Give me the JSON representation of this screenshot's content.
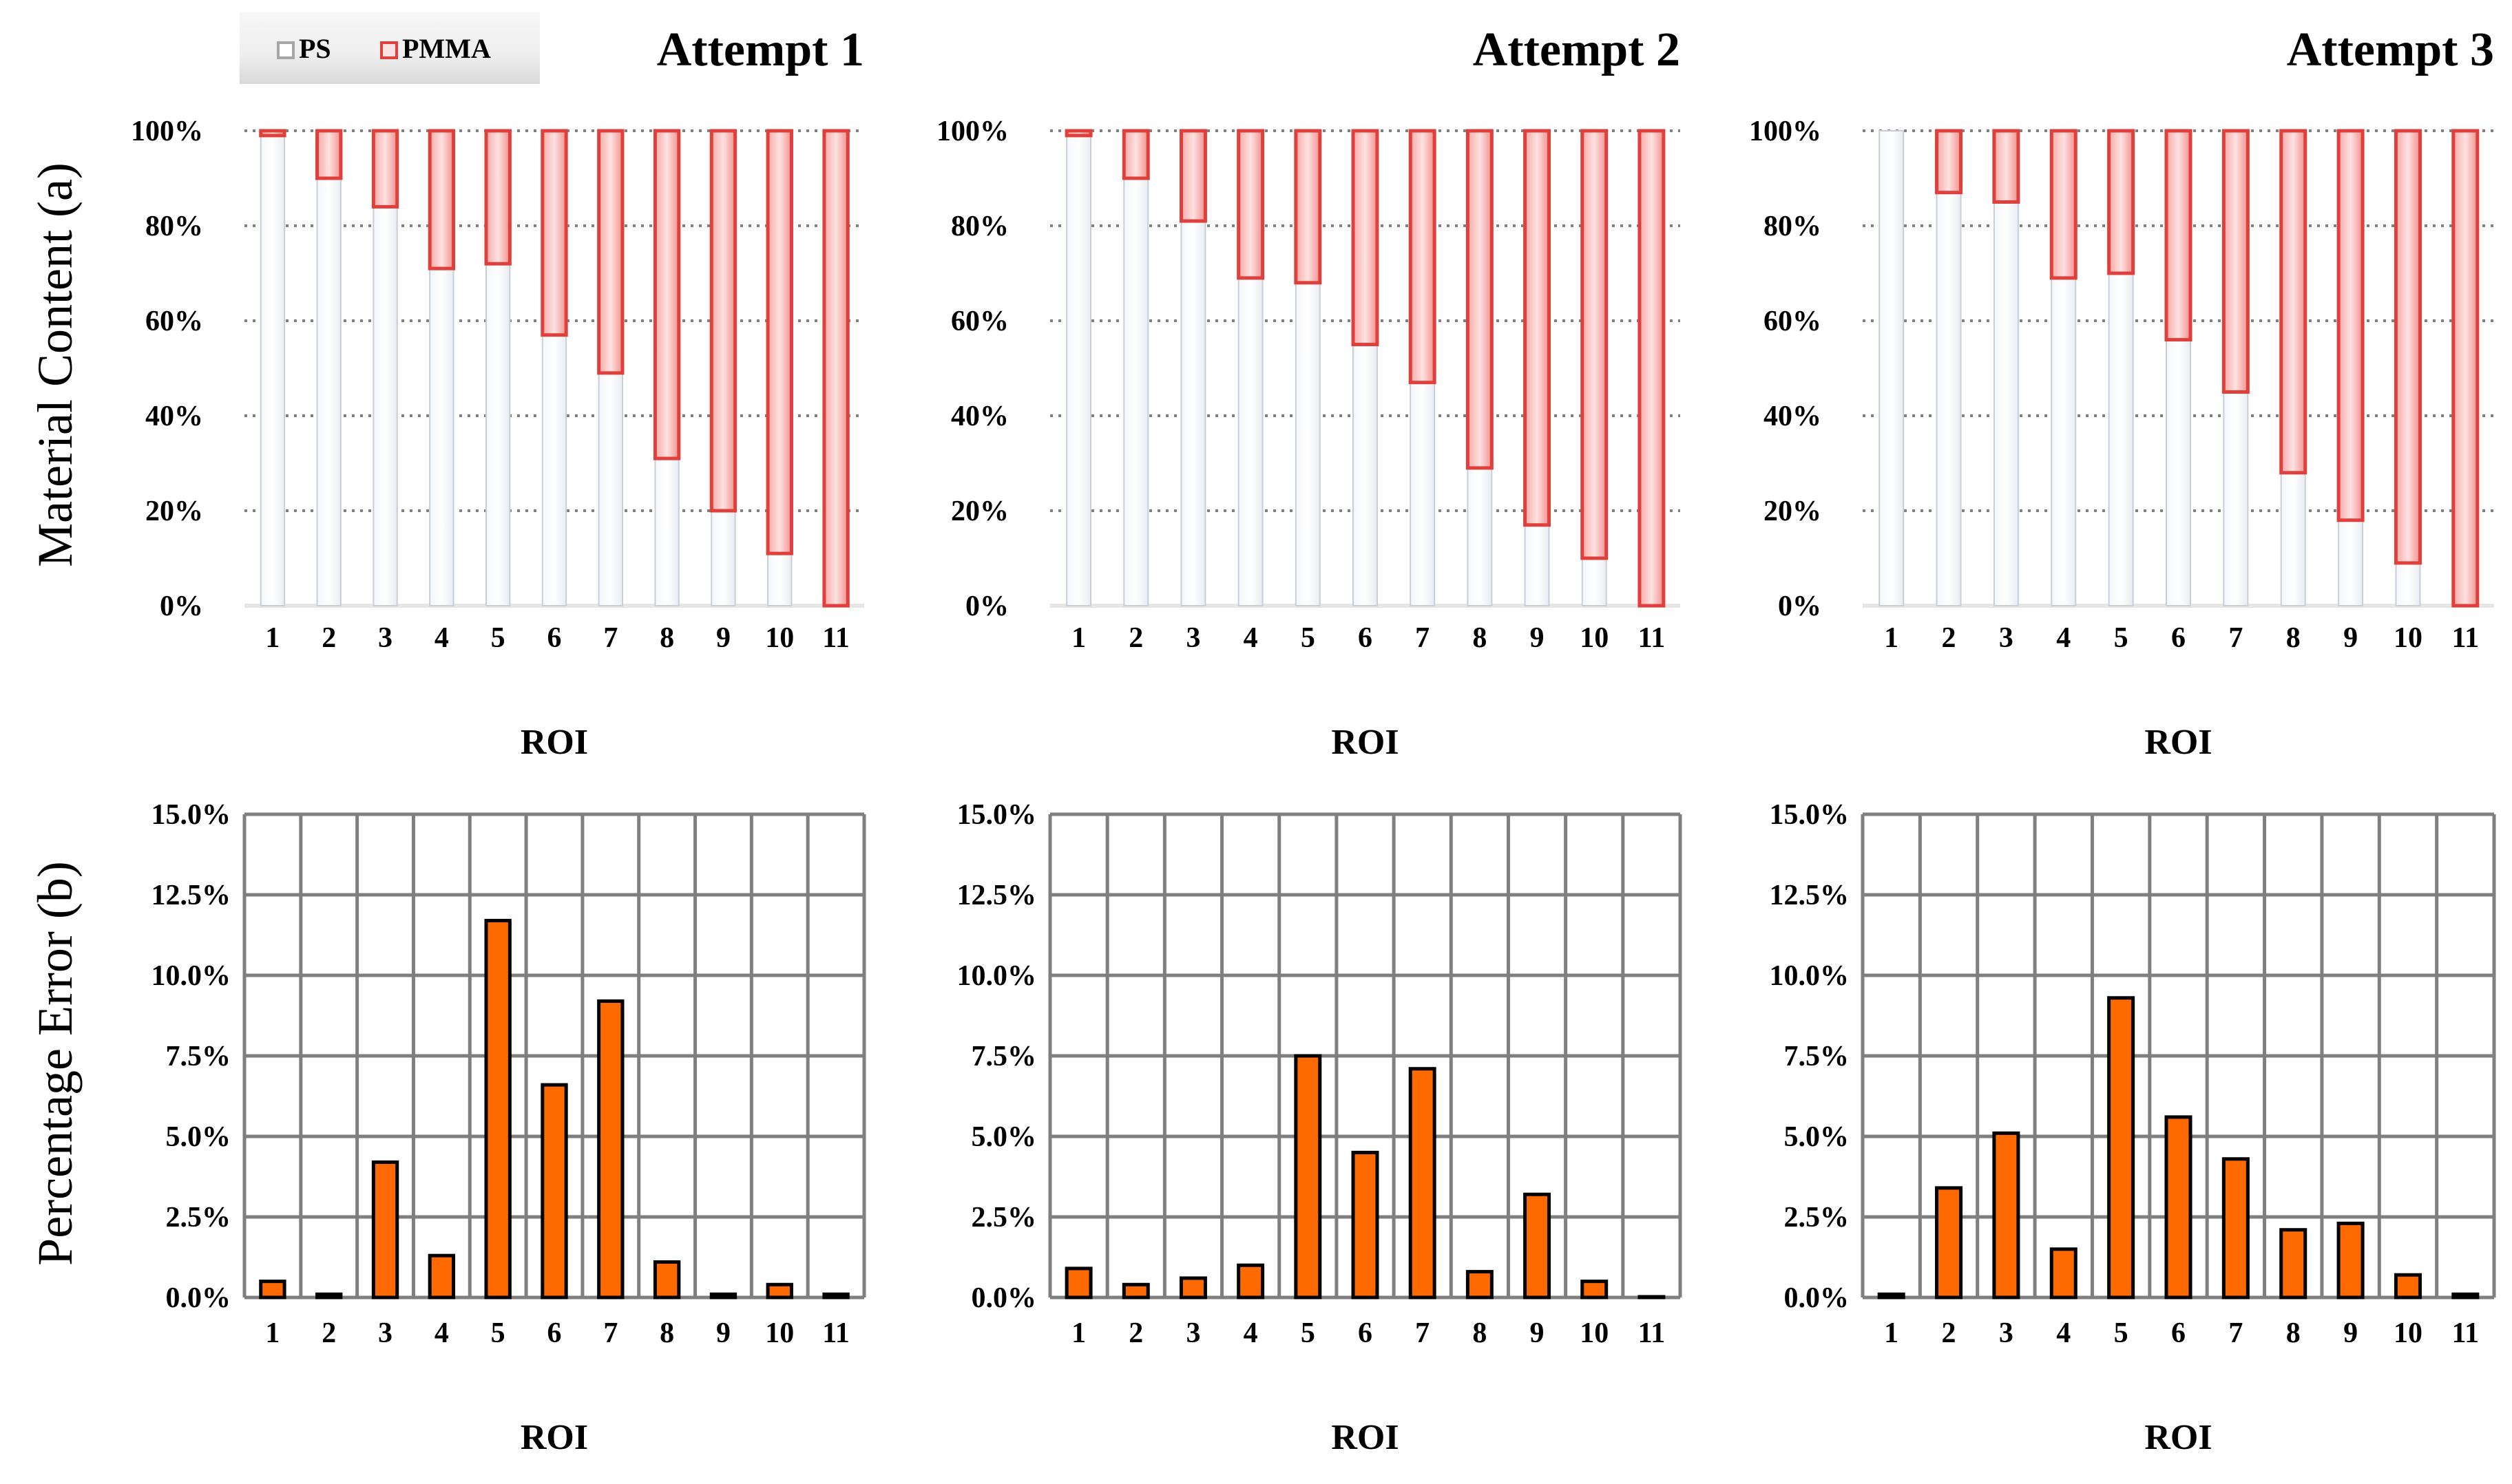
{
  "figure": {
    "ylabel_a": "Material Content (a)",
    "ylabel_b": "Percentage Error (b)",
    "legend": [
      {
        "label": "PS",
        "color": "#a6a6a6"
      },
      {
        "label": "PMMA",
        "color": "#e0403c"
      }
    ]
  },
  "colors": {
    "ps": "#cfd3d8",
    "pmma": "#e8504c",
    "error_bar": "#ff6a00",
    "grid": "#7f7f7f"
  },
  "chart_data": [
    {
      "type": "bar",
      "stacked": true,
      "title": "Attempt 1",
      "row": "a",
      "categories": [
        "1",
        "2",
        "3",
        "4",
        "5",
        "6",
        "7",
        "8",
        "9",
        "10",
        "11"
      ],
      "series": [
        {
          "name": "PS",
          "values": [
            99,
            90,
            84,
            71,
            72,
            57,
            49,
            31,
            20,
            11,
            0
          ]
        },
        {
          "name": "PMMA",
          "values": [
            1,
            10,
            16,
            29,
            28,
            43,
            51,
            69,
            80,
            89,
            100
          ]
        }
      ],
      "xlabel": "ROI",
      "ylim": [
        0,
        100
      ],
      "yticks": [
        "0%",
        "20%",
        "40%",
        "60%",
        "80%",
        "100%"
      ]
    },
    {
      "type": "bar",
      "stacked": true,
      "title": "Attempt 2",
      "row": "a",
      "categories": [
        "1",
        "2",
        "3",
        "4",
        "5",
        "6",
        "7",
        "8",
        "9",
        "10",
        "11"
      ],
      "series": [
        {
          "name": "PS",
          "values": [
            99,
            90,
            81,
            69,
            68,
            55,
            47,
            29,
            17,
            10,
            0
          ]
        },
        {
          "name": "PMMA",
          "values": [
            1,
            10,
            19,
            31,
            32,
            45,
            53,
            71,
            83,
            90,
            100
          ]
        }
      ],
      "xlabel": "ROI",
      "ylim": [
        0,
        100
      ],
      "yticks": [
        "0%",
        "20%",
        "40%",
        "60%",
        "80%",
        "100%"
      ]
    },
    {
      "type": "bar",
      "stacked": true,
      "title": "Attempt 3",
      "row": "a",
      "categories": [
        "1",
        "2",
        "3",
        "4",
        "5",
        "6",
        "7",
        "8",
        "9",
        "10",
        "11"
      ],
      "series": [
        {
          "name": "PS",
          "values": [
            100,
            87,
            85,
            69,
            70,
            56,
            45,
            28,
            18,
            9,
            0
          ]
        },
        {
          "name": "PMMA",
          "values": [
            0,
            13,
            15,
            31,
            30,
            44,
            55,
            72,
            82,
            91,
            100
          ]
        }
      ],
      "xlabel": "ROI",
      "ylim": [
        0,
        100
      ],
      "yticks": [
        "0%",
        "20%",
        "40%",
        "60%",
        "80%",
        "100%"
      ]
    },
    {
      "type": "bar",
      "row": "b",
      "categories": [
        "1",
        "2",
        "3",
        "4",
        "5",
        "6",
        "7",
        "8",
        "9",
        "10",
        "11"
      ],
      "values": [
        0.5,
        0.1,
        4.2,
        1.3,
        11.7,
        6.6,
        9.2,
        1.1,
        0.1,
        0.4,
        0.1
      ],
      "xlabel": "ROI",
      "ylim": [
        0,
        15
      ],
      "yticks": [
        "0.0%",
        "2.5%",
        "5.0%",
        "7.5%",
        "10.0%",
        "12.5%",
        "15.0%"
      ]
    },
    {
      "type": "bar",
      "row": "b",
      "categories": [
        "1",
        "2",
        "3",
        "4",
        "5",
        "6",
        "7",
        "8",
        "9",
        "10",
        "11"
      ],
      "values": [
        0.9,
        0.4,
        0.6,
        1.0,
        7.5,
        4.5,
        7.1,
        0.8,
        3.2,
        0.5,
        0.0
      ],
      "xlabel": "ROI",
      "ylim": [
        0,
        15
      ],
      "yticks": [
        "0.0%",
        "2.5%",
        "5.0%",
        "7.5%",
        "10.0%",
        "12.5%",
        "15.0%"
      ]
    },
    {
      "type": "bar",
      "row": "b",
      "categories": [
        "1",
        "2",
        "3",
        "4",
        "5",
        "6",
        "7",
        "8",
        "9",
        "10",
        "11"
      ],
      "values": [
        0.1,
        3.4,
        5.1,
        1.5,
        9.3,
        5.6,
        4.3,
        2.1,
        2.3,
        0.7,
        0.1
      ],
      "xlabel": "ROI",
      "ylim": [
        0,
        15
      ],
      "yticks": [
        "0.0%",
        "2.5%",
        "5.0%",
        "7.5%",
        "10.0%",
        "12.5%",
        "15.0%"
      ]
    }
  ]
}
